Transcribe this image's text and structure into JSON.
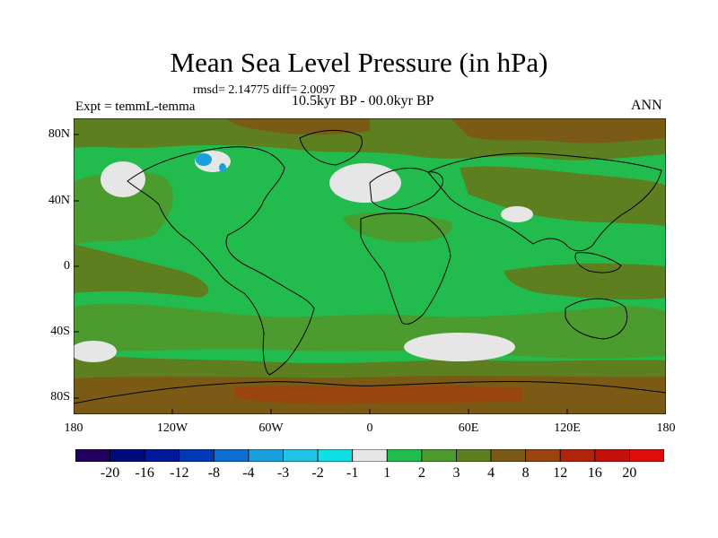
{
  "title": "Mean Sea Level Pressure (in hPa)",
  "stats": "rmsd= 2.14775 diff= 2.0097",
  "experiment": "Expt = temmL-temma",
  "period": "10.5kyr BP - 00.0kyr BP",
  "season": "ANN",
  "y_ticks": [
    "80N",
    "40N",
    "0",
    "40S",
    "80S"
  ],
  "x_ticks": [
    "180",
    "120W",
    "60W",
    "0",
    "60E",
    "120E",
    "180"
  ],
  "colorbar": {
    "labels": [
      "-20",
      "-16",
      "-12",
      "-8",
      "-4",
      "-3",
      "-2",
      "-1",
      "1",
      "2",
      "3",
      "4",
      "8",
      "12",
      "16",
      "20"
    ],
    "colors": [
      "#21005e",
      "#000a7d",
      "#00189a",
      "#0038b8",
      "#0b70d0",
      "#1aa1dd",
      "#22c4e6",
      "#11dfe6",
      "#e6e6e6",
      "#22bb4d",
      "#4b9b2e",
      "#5e7f1f",
      "#7a5a14",
      "#9a4410",
      "#b2240a",
      "#c50f0a",
      "#e00d0d"
    ]
  },
  "colors": {
    "land_ocean_base": "#22bb4d",
    "mid_level": "#4b9b2e",
    "high_level": "#5e7f1f",
    "very_high_level": "#7a5a14",
    "near_zero": "#e6e6e6",
    "negative": "#1aa1dd"
  }
}
